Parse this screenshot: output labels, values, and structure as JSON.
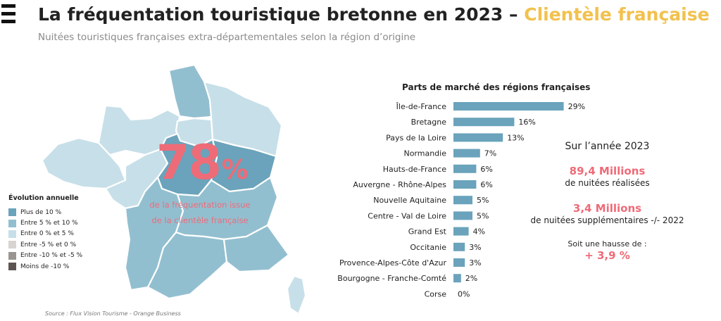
{
  "header": {
    "title_main": "La fréquentation touristique bretonne en 2023 – ",
    "title_accent": "Clientèle française",
    "subtitle": "Nuitées touristiques françaises extra-départementales selon la région d’origine"
  },
  "map": {
    "big_value": "78",
    "big_unit": "%",
    "caption_line1": "de la fréquentation issue",
    "caption_line2": "de la clientèle française"
  },
  "legend": {
    "title": "Évolution annuelle",
    "items": [
      {
        "label": "Plus de 10 %",
        "color": "#6aa3bb"
      },
      {
        "label": "Entre 5 % et 10 %",
        "color": "#92bfd0"
      },
      {
        "label": "Entre 0 % et 5 %",
        "color": "#c7dfe8"
      },
      {
        "label": "Entre -5 % et 0 %",
        "color": "#d7d4d2"
      },
      {
        "label": "Entre -10 % et -5 %",
        "color": "#9b9592"
      },
      {
        "label": "Moins de -10 %",
        "color": "#5e5553"
      }
    ]
  },
  "source": "Source : Flux Vision Tourisme - Orange Business",
  "chart_data": {
    "type": "bar",
    "orientation": "horizontal",
    "title": "Parts de marché des régions françaises",
    "categories": [
      "Île-de-France",
      "Bretagne",
      "Pays de la Loire",
      "Normandie",
      "Hauts-de-France",
      "Auvergne - Rhône-Alpes",
      "Nouvelle Aquitaine",
      "Centre - Val de Loire",
      "Grand Est",
      "Occitanie",
      "Provence-Alpes-Côte d'Azur",
      "Bourgogne - Franche-Comté",
      "Corse"
    ],
    "values": [
      29,
      16,
      13,
      7,
      6,
      6,
      5,
      5,
      4,
      3,
      3,
      2,
      0
    ],
    "value_labels": [
      "29%",
      "16%",
      "13%",
      "7%",
      "6%",
      "6%",
      "5%",
      "5%",
      "4%",
      "3%",
      "3%",
      "2%",
      "0%"
    ],
    "bar_color": "#6aa3bb",
    "xlim": [
      0,
      30
    ]
  },
  "summary": {
    "year_label": "Sur l’année 2023",
    "nights_value": "89,4 Millions",
    "nights_label": "de nuitées réalisées",
    "extra_value": "3,4 Millions",
    "extra_label": "de nuitées supplémentaires -/- 2022",
    "rise_label": "Soit une hausse de :",
    "rise_value": "+ 3,9 %"
  }
}
